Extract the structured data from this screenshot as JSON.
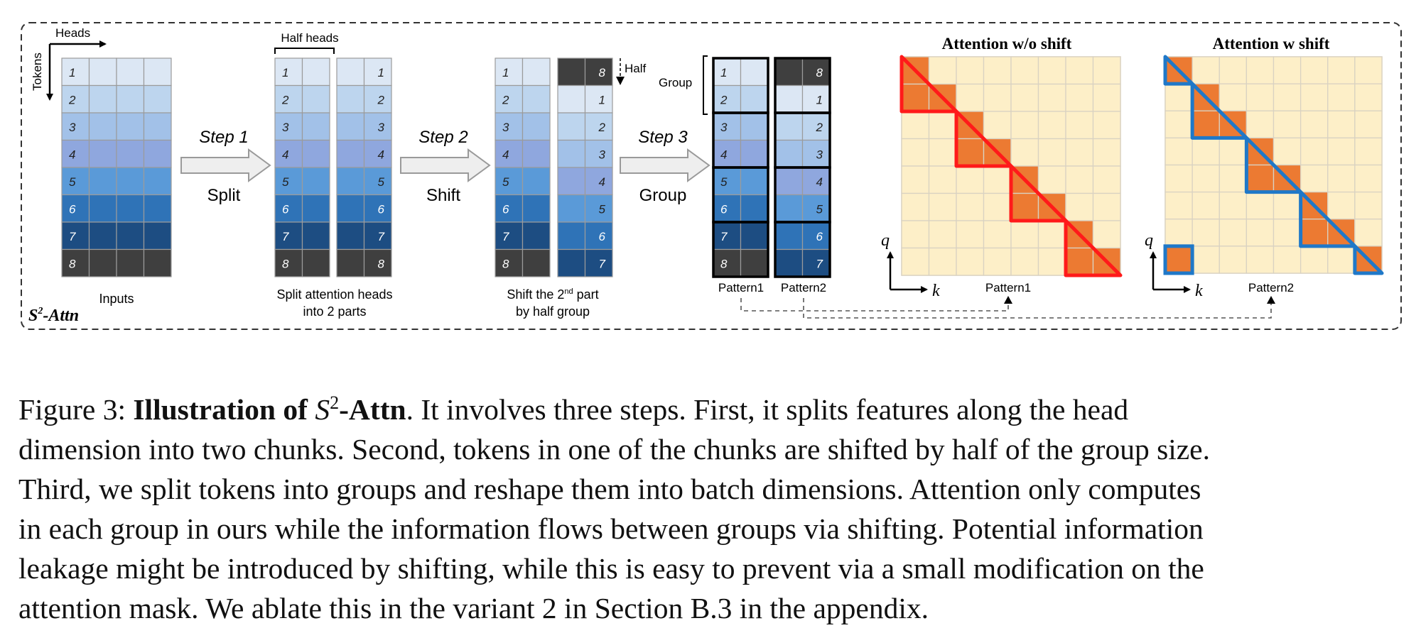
{
  "diagram": {
    "axis_heads": "Heads",
    "axis_tokens": "Tokens",
    "brand": "S²-Attn",
    "brand_main": "S",
    "brand_sup": "2",
    "brand_suffix": "-Attn",
    "inputs_label": "Inputs",
    "half_heads_label": "Half heads",
    "split_caption_l1": "Split attention heads",
    "split_caption_l2": "into 2 parts",
    "shift_caption_l1a": "Shift the 2",
    "shift_caption_l1sup": "nd",
    "shift_caption_l1b": " part",
    "shift_caption_l2": "by half group",
    "half_label": "Half",
    "group_label": "Group",
    "pattern1_label": "Pattern1",
    "pattern2_label": "Pattern2",
    "steps": [
      {
        "title": "Step 1",
        "action": "Split"
      },
      {
        "title": "Step 2",
        "action": "Shift"
      },
      {
        "title": "Step 3",
        "action": "Group"
      }
    ],
    "token_ids": [
      "1",
      "2",
      "3",
      "4",
      "5",
      "6",
      "7",
      "8"
    ],
    "shifted_ids": [
      "8",
      "1",
      "2",
      "3",
      "4",
      "5",
      "6",
      "7"
    ],
    "row_colors": [
      "#dce7f4",
      "#bdd5ee",
      "#a2c1e8",
      "#8fa7de",
      "#5a9ad8",
      "#2f73b7",
      "#1d4d82",
      "#3f3f3f"
    ],
    "matrix_left": {
      "title": "Attention w/o shift",
      "q": "q",
      "k": "k",
      "pattern": "Pattern1",
      "color": "#ff1a1a"
    },
    "matrix_right": {
      "title": "Attention w shift",
      "q": "q",
      "k": "k",
      "pattern": "Pattern2",
      "color": "#1f78c8"
    },
    "colors": {
      "orange": "#ec7a32",
      "cream": "#fdefc8",
      "gridline": "#d9d2c2",
      "arrow_fill": "#eeeeee",
      "arrow_stroke": "#9a9a9a"
    }
  },
  "caption": {
    "lead": "Figure 3: ",
    "bold": "Illustration of ",
    "math_s": "S",
    "math_sup": "2",
    "bold_tail": "-Attn",
    "lines": [
      ". It involves three steps. First, it splits features along the head",
      "dimension into two chunks. Second, tokens in one of the chunks are shifted by half of the group size.",
      "Third, we split tokens into groups and reshape them into batch dimensions. Attention only computes",
      "in each group in ours while the information flows between groups via shifting. Potential information",
      "leakage might be introduced by shifting, while this is easy to prevent via a small modification on the",
      "attention mask. We ablate this in the variant 2 in Section B.3 in the appendix."
    ]
  }
}
